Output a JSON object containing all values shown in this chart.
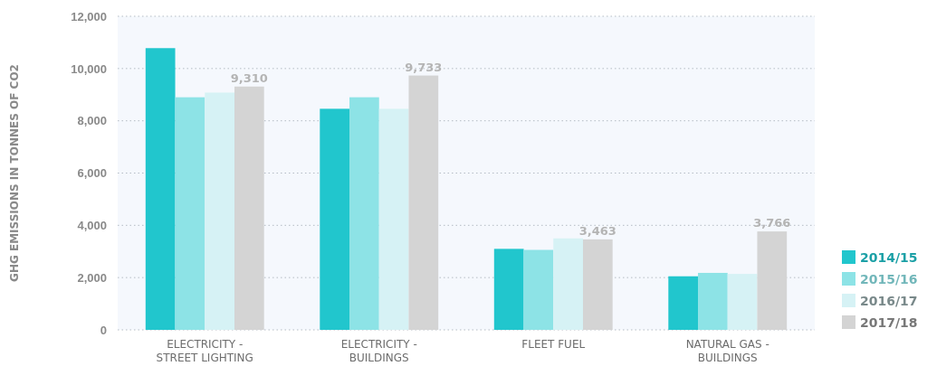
{
  "chart_data": {
    "type": "bar",
    "ylabel": "GHG EMISSIONS IN TONNES OF CO2",
    "categories": [
      "ELECTRICITY - STREET LIGHTING",
      "ELECTRICITY - BUILDINGS",
      "FLEET FUEL",
      "NATURAL GAS - BUILDINGS"
    ],
    "series": [
      {
        "name": "2014/15",
        "color": "#21c6cd",
        "values": [
          10780,
          8460,
          3100,
          2050
        ]
      },
      {
        "name": "2015/16",
        "color": "#8de3e6",
        "values": [
          8900,
          8900,
          3060,
          2180
        ]
      },
      {
        "name": "2016/17",
        "color": "#d6f2f5",
        "values": [
          9080,
          8460,
          3500,
          2140
        ]
      },
      {
        "name": "2017/18",
        "color": "#d4d4d4",
        "values": [
          9310,
          9733,
          3463,
          3766
        ],
        "value_labels": [
          "9,310",
          "9,733",
          "3,463",
          "3,766"
        ]
      }
    ],
    "ylim": [
      0,
      12000
    ],
    "yticks": [
      {
        "value": 0,
        "label": "0"
      },
      {
        "value": 2000,
        "label": "2,000"
      },
      {
        "value": 4000,
        "label": "4,000"
      },
      {
        "value": 6000,
        "label": "6,000"
      },
      {
        "value": 8000,
        "label": "8,000"
      },
      {
        "value": 10000,
        "label": "10,000"
      },
      {
        "value": 12000,
        "label": "12,000"
      }
    ],
    "grid": "y",
    "legend": "right"
  }
}
